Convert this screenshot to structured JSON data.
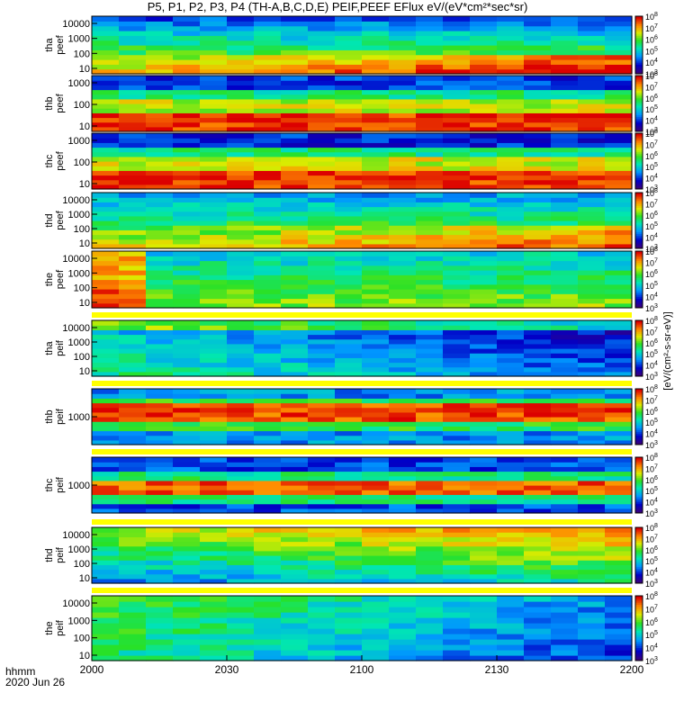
{
  "title": "P5, P1, P2, P3, P4 (TH-A,B,C,D,E) PEIF,PEEF EFlux eV/(eV*cm²*sec*sr)",
  "footer": {
    "time_label": "hhmm",
    "date_label": "2020 Jun 26"
  },
  "colorbar_units": "[eV/(cm²-s-sr-eV)]",
  "chart_data": {
    "type": "heatmap",
    "colormap": "rainbow",
    "x": {
      "ticks": [
        "2000",
        "2030",
        "2100",
        "2130",
        "2200"
      ],
      "range": [
        "20:00",
        "22:00"
      ],
      "time_bins": 20
    },
    "panels": [
      {
        "name": "tha peef",
        "ylabel": [
          "tha",
          "peef"
        ],
        "yscale": "log",
        "yticks": [
          "10000",
          "1000",
          "100",
          "10"
        ],
        "colorbar": {
          "min_exp": 3,
          "max_exp": 8
        },
        "energy_bins": 12
      },
      {
        "name": "thb peef",
        "ylabel": [
          "thb",
          "peef"
        ],
        "yscale": "log",
        "yticks": [
          "1000",
          "100",
          "10"
        ],
        "colorbar": {
          "min_exp": 3,
          "max_exp": 8
        },
        "energy_bins": 12
      },
      {
        "name": "thc peef",
        "ylabel": [
          "thc",
          "peef"
        ],
        "yscale": "log",
        "yticks": [
          "1000",
          "100",
          "10"
        ],
        "colorbar": {
          "min_exp": 3,
          "max_exp": 8
        },
        "energy_bins": 12
      },
      {
        "name": "thd peef",
        "ylabel": [
          "thd",
          "peef"
        ],
        "yscale": "log",
        "yticks": [
          "10000",
          "1000",
          "100",
          "10"
        ],
        "colorbar": {
          "min_exp": 3,
          "max_exp": 8
        },
        "energy_bins": 12
      },
      {
        "name": "the peef",
        "ylabel": [
          "the",
          "peef"
        ],
        "yscale": "log",
        "yticks": [
          "10000",
          "1000",
          "100",
          "10"
        ],
        "colorbar": {
          "min_exp": 3,
          "max_exp": 8
        },
        "energy_bins": 12
      },
      {
        "name": "tha peif",
        "ylabel": [
          "tha",
          "peif"
        ],
        "yscale": "log",
        "yticks": [
          "10000",
          "1000",
          "100",
          "10"
        ],
        "colorbar": {
          "min_exp": 3,
          "max_exp": 8
        },
        "energy_bins": 12
      },
      {
        "name": "thb peif",
        "ylabel": [
          "thb",
          "peif"
        ],
        "yscale": "log",
        "yticks": [
          "1000"
        ],
        "colorbar": {
          "min_exp": 3,
          "max_exp": 8
        },
        "energy_bins": 12
      },
      {
        "name": "thc peif",
        "ylabel": [
          "thc",
          "peif"
        ],
        "yscale": "log",
        "yticks": [
          "1000"
        ],
        "colorbar": {
          "min_exp": 3,
          "max_exp": 8
        },
        "energy_bins": 12
      },
      {
        "name": "thd peif",
        "ylabel": [
          "thd",
          "peif"
        ],
        "yscale": "log",
        "yticks": [
          "10000",
          "1000",
          "100",
          "10"
        ],
        "colorbar": {
          "min_exp": 3,
          "max_exp": 8
        },
        "energy_bins": 12
      },
      {
        "name": "the peif",
        "ylabel": [
          "the",
          "peif"
        ],
        "yscale": "log",
        "yticks": [
          "10000",
          "1000",
          "100",
          "10"
        ],
        "colorbar": {
          "min_exp": 3,
          "max_exp": 8
        },
        "energy_bins": 12
      }
    ]
  }
}
